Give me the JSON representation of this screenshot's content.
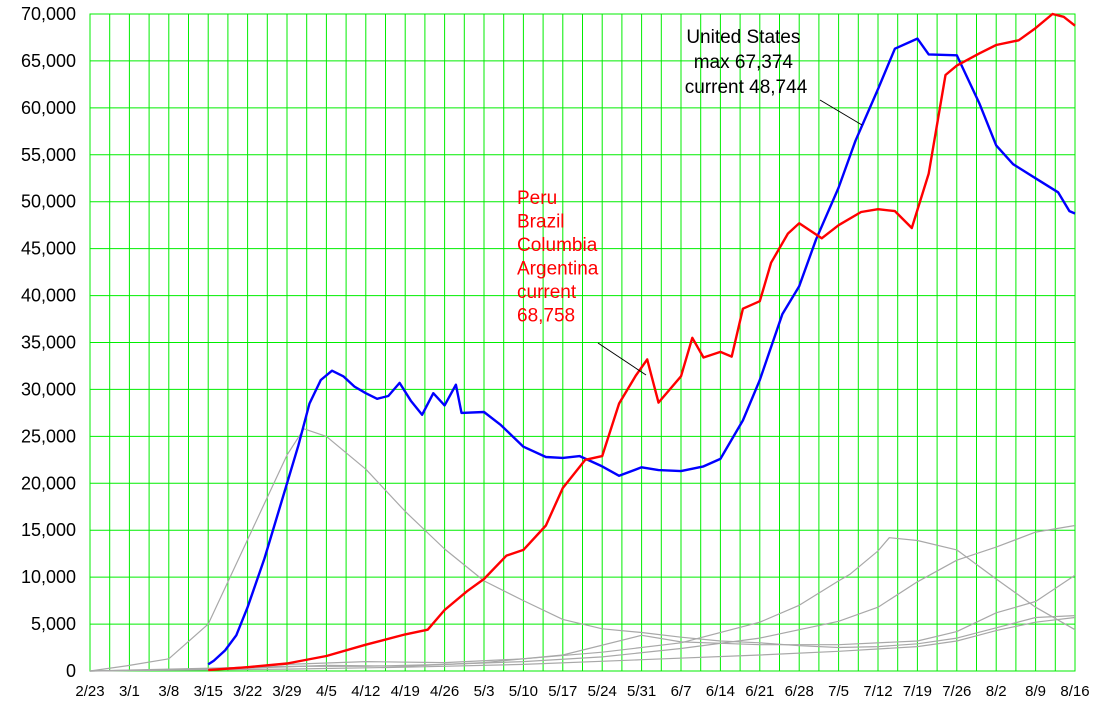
{
  "chart_data": {
    "type": "line",
    "title": "",
    "xlabel": "",
    "ylabel": "",
    "ylim": [
      0,
      70000
    ],
    "y_ticks": [
      0,
      5000,
      10000,
      15000,
      20000,
      25000,
      30000,
      35000,
      40000,
      45000,
      50000,
      55000,
      60000,
      65000,
      70000
    ],
    "y_tick_labels": [
      "0",
      "5,000",
      "10,000",
      "15,000",
      "20,000",
      "25,000",
      "30,000",
      "35,000",
      "40,000",
      "45,000",
      "50,000",
      "55,000",
      "60,000",
      "65,000",
      "70,000"
    ],
    "x_tick_labels": [
      "2/23",
      "3/1",
      "3/8",
      "3/15",
      "3/22",
      "3/29",
      "4/5",
      "4/12",
      "4/19",
      "4/26",
      "5/3",
      "5/10",
      "5/17",
      "5/24",
      "5/31",
      "6/7",
      "6/14",
      "6/21",
      "6/28",
      "7/5",
      "7/12",
      "7/19",
      "7/26",
      "8/2",
      "8/9",
      "8/16"
    ],
    "grid": true,
    "series": [
      {
        "name": "United States",
        "color": "#0000ff",
        "points": [
          [
            "3/15",
            700
          ],
          [
            "3/16",
            1100
          ],
          [
            "3/18",
            2200
          ],
          [
            "3/20",
            3800
          ],
          [
            "3/22",
            6800
          ],
          [
            "3/25",
            12000
          ],
          [
            "3/28",
            18000
          ],
          [
            "3/31",
            24000
          ],
          [
            "4/2",
            28500
          ],
          [
            "4/4",
            31000
          ],
          [
            "4/6",
            32000
          ],
          [
            "4/8",
            31400
          ],
          [
            "4/10",
            30300
          ],
          [
            "4/12",
            29600
          ],
          [
            "4/14",
            29000
          ],
          [
            "4/16",
            29300
          ],
          [
            "4/18",
            30700
          ],
          [
            "4/20",
            28800
          ],
          [
            "4/22",
            27300
          ],
          [
            "4/24",
            29600
          ],
          [
            "4/26",
            28300
          ],
          [
            "4/28",
            30500
          ],
          [
            "4/29",
            27500
          ],
          [
            "5/3",
            27600
          ],
          [
            "5/6",
            26200
          ],
          [
            "5/10",
            23900
          ],
          [
            "5/14",
            22800
          ],
          [
            "5/17",
            22700
          ],
          [
            "5/20",
            22900
          ],
          [
            "5/24",
            21800
          ],
          [
            "5/27",
            20800
          ],
          [
            "5/31",
            21700
          ],
          [
            "6/3",
            21400
          ],
          [
            "6/7",
            21300
          ],
          [
            "6/11",
            21800
          ],
          [
            "6/14",
            22600
          ],
          [
            "6/18",
            26700
          ],
          [
            "6/21",
            31000
          ],
          [
            "6/25",
            38000
          ],
          [
            "6/28",
            41000
          ],
          [
            "7/1",
            46000
          ],
          [
            "7/5",
            51500
          ],
          [
            "7/8",
            56500
          ],
          [
            "7/12",
            62000
          ],
          [
            "7/15",
            66300
          ],
          [
            "7/19",
            67374
          ],
          [
            "7/21",
            65700
          ],
          [
            "7/26",
            65600
          ],
          [
            "7/30",
            60500
          ],
          [
            "8/2",
            56000
          ],
          [
            "8/5",
            54000
          ],
          [
            "8/9",
            52500
          ],
          [
            "8/13",
            51000
          ],
          [
            "8/15",
            49000
          ],
          [
            "8/16",
            48744
          ]
        ]
      },
      {
        "name": "Peru Brazil Columbia Argentina",
        "color": "#ff0000",
        "points": [
          [
            "3/15",
            100
          ],
          [
            "3/22",
            400
          ],
          [
            "3/29",
            800
          ],
          [
            "4/5",
            1600
          ],
          [
            "4/12",
            2800
          ],
          [
            "4/19",
            3900
          ],
          [
            "4/23",
            4400
          ],
          [
            "4/26",
            6500
          ],
          [
            "4/30",
            8500
          ],
          [
            "5/3",
            9800
          ],
          [
            "5/7",
            12300
          ],
          [
            "5/10",
            12900
          ],
          [
            "5/14",
            15500
          ],
          [
            "5/17",
            19500
          ],
          [
            "5/21",
            22500
          ],
          [
            "5/24",
            22900
          ],
          [
            "5/27",
            28500
          ],
          [
            "5/30",
            31500
          ],
          [
            "6/1",
            33200
          ],
          [
            "6/3",
            28600
          ],
          [
            "6/7",
            31400
          ],
          [
            "6/9",
            35500
          ],
          [
            "6/11",
            33400
          ],
          [
            "6/14",
            34000
          ],
          [
            "6/16",
            33500
          ],
          [
            "6/18",
            38600
          ],
          [
            "6/21",
            39400
          ],
          [
            "6/23",
            43500
          ],
          [
            "6/26",
            46600
          ],
          [
            "6/28",
            47700
          ],
          [
            "7/2",
            46100
          ],
          [
            "7/5",
            47500
          ],
          [
            "7/9",
            48900
          ],
          [
            "7/12",
            49200
          ],
          [
            "7/15",
            49000
          ],
          [
            "7/18",
            47200
          ],
          [
            "7/21",
            53000
          ],
          [
            "7/24",
            63500
          ],
          [
            "7/26",
            64500
          ],
          [
            "7/30",
            65800
          ],
          [
            "8/2",
            66700
          ],
          [
            "8/6",
            67200
          ],
          [
            "8/9",
            68500
          ],
          [
            "8/12",
            70000
          ],
          [
            "8/14",
            69700
          ],
          [
            "8/16",
            68758
          ]
        ]
      },
      {
        "color": "#a8a8a8",
        "points": [
          [
            "2/23",
            0
          ],
          [
            "3/1",
            600
          ],
          [
            "3/8",
            1300
          ],
          [
            "3/15",
            5000
          ],
          [
            "3/22",
            14000
          ],
          [
            "3/29",
            23000
          ],
          [
            "4/1",
            25800
          ],
          [
            "4/5",
            25000
          ],
          [
            "4/12",
            21500
          ],
          [
            "4/19",
            17000
          ],
          [
            "4/26",
            13000
          ],
          [
            "5/3",
            9600
          ],
          [
            "5/10",
            7500
          ],
          [
            "5/17",
            5500
          ],
          [
            "5/24",
            4500
          ],
          [
            "5/31",
            4100
          ],
          [
            "6/7",
            3600
          ],
          [
            "6/14",
            3200
          ],
          [
            "6/21",
            3000
          ],
          [
            "6/28",
            2700
          ],
          [
            "7/5",
            2500
          ],
          [
            "7/12",
            2600
          ],
          [
            "7/19",
            2900
          ],
          [
            "7/26",
            3500
          ],
          [
            "8/2",
            4600
          ],
          [
            "8/9",
            5700
          ],
          [
            "8/16",
            5900
          ]
        ]
      },
      {
        "color": "#a8a8a8",
        "points": [
          [
            "2/23",
            0
          ],
          [
            "3/15",
            200
          ],
          [
            "3/29",
            700
          ],
          [
            "4/12",
            1000
          ],
          [
            "4/26",
            900
          ],
          [
            "5/10",
            1300
          ],
          [
            "5/24",
            2000
          ],
          [
            "6/7",
            3000
          ],
          [
            "6/21",
            5200
          ],
          [
            "6/28",
            7000
          ],
          [
            "7/5",
            9600
          ],
          [
            "7/7",
            10300
          ],
          [
            "7/12",
            12800
          ],
          [
            "7/14",
            14200
          ],
          [
            "7/19",
            13900
          ],
          [
            "7/26",
            12900
          ],
          [
            "8/2",
            9800
          ],
          [
            "8/9",
            6800
          ],
          [
            "8/16",
            4400
          ]
        ]
      },
      {
        "color": "#a8a8a8",
        "points": [
          [
            "2/23",
            0
          ],
          [
            "3/15",
            300
          ],
          [
            "3/29",
            500
          ],
          [
            "4/12",
            500
          ],
          [
            "4/26",
            700
          ],
          [
            "5/10",
            1000
          ],
          [
            "5/24",
            1500
          ],
          [
            "6/7",
            2400
          ],
          [
            "6/21",
            3500
          ],
          [
            "7/5",
            5300
          ],
          [
            "7/12",
            6800
          ],
          [
            "7/19",
            9500
          ],
          [
            "7/26",
            11800
          ],
          [
            "8/2",
            13200
          ],
          [
            "8/9",
            14800
          ],
          [
            "8/16",
            15500
          ]
        ]
      },
      {
        "color": "#a8a8a8",
        "points": [
          [
            "2/23",
            0
          ],
          [
            "3/22",
            300
          ],
          [
            "4/5",
            600
          ],
          [
            "4/19",
            500
          ],
          [
            "5/3",
            900
          ],
          [
            "5/17",
            1700
          ],
          [
            "5/31",
            3800
          ],
          [
            "6/7",
            3100
          ],
          [
            "6/21",
            2800
          ],
          [
            "7/5",
            2800
          ],
          [
            "7/19",
            3200
          ],
          [
            "7/26",
            4200
          ],
          [
            "8/2",
            6200
          ],
          [
            "8/9",
            7400
          ],
          [
            "8/16",
            10200
          ]
        ]
      },
      {
        "color": "#a8a8a8",
        "points": [
          [
            "2/23",
            0
          ],
          [
            "3/29",
            200
          ],
          [
            "4/19",
            400
          ],
          [
            "5/10",
            700
          ],
          [
            "5/31",
            1200
          ],
          [
            "6/21",
            1700
          ],
          [
            "7/5",
            2100
          ],
          [
            "7/19",
            2600
          ],
          [
            "7/26",
            3200
          ],
          [
            "8/2",
            4300
          ],
          [
            "8/9",
            5200
          ],
          [
            "8/16",
            5700
          ]
        ]
      }
    ],
    "annotations": [
      {
        "lines": [
          "United States",
          "max 67,374",
          "current 48,744"
        ],
        "color": "#000000"
      },
      {
        "lines": [
          "Peru",
          "Brazil",
          "Columbia",
          "Argentina",
          "current",
          "68,758"
        ],
        "color": "#ff0000"
      }
    ]
  }
}
